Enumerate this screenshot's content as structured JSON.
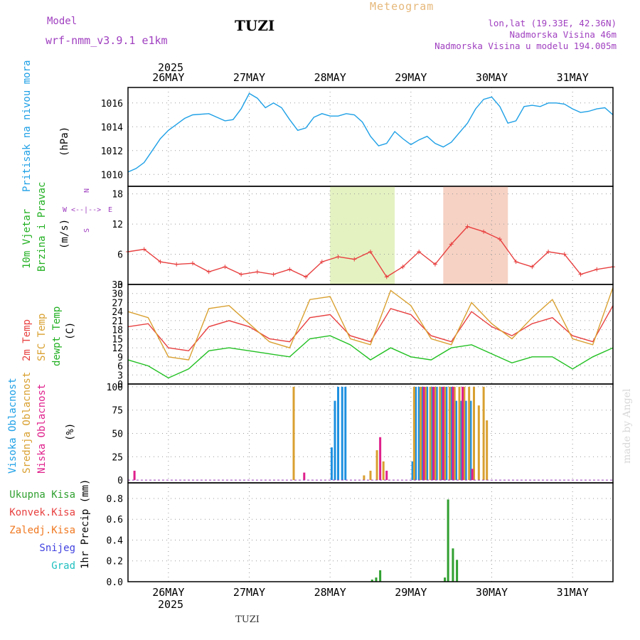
{
  "header": {
    "model_label": "Model",
    "model_name": "wrf-nmm_v3.9.1  e1km",
    "location_title": "TUZI",
    "meteogram_label": "Meteogram",
    "coords": "lon,lat (19.33E, 42.36N)",
    "elevation": "Nadmorska Visina 46m",
    "model_elevation": "Nadmorska Visina u modelu 194.005m",
    "footer_location": "TUZI",
    "credit": "made by Angel"
  },
  "time_axis": {
    "year": "2025",
    "day_labels": [
      "26MAY",
      "27MAY",
      "28MAY",
      "29MAY",
      "30MAY",
      "31MAY"
    ],
    "day_positions": [
      1,
      2,
      3,
      4,
      5,
      6
    ],
    "range_days": [
      0.5,
      6.5
    ]
  },
  "colors": {
    "pressure": "#1ea0e6",
    "t2m": "#e84040",
    "sfc": "#d9a030",
    "dewpt": "#22c022",
    "high_cloud": "#1e90e0",
    "mid_cloud": "#d9a030",
    "low_cloud": "#e0208c",
    "precip_total": "#30a030",
    "precip_conv": "#e84040",
    "precip_ice": "#f07820",
    "precip_snow": "#4040e0",
    "precip_grad": "#20c0c0",
    "wind_series": "#e84040",
    "wind_mean": "#000000",
    "label_purple": "#a040c0"
  },
  "chart_data": [
    {
      "type": "line",
      "panel": "pressure",
      "ylabel": "Pritisak na nivou mora",
      "unit": "(hPa)",
      "ylim": [
        1009.0,
        1017.3
      ],
      "yticks": [
        1010,
        1012,
        1014,
        1016
      ],
      "series": [
        {
          "x": [
            0.5,
            0.6,
            0.7,
            0.8,
            0.9,
            1.0,
            1.1,
            1.2,
            1.3,
            1.5,
            1.6,
            1.7,
            1.8,
            1.9,
            2.0,
            2.1,
            2.2,
            2.3,
            2.4,
            2.5,
            2.6,
            2.7,
            2.8,
            2.9,
            3.0,
            3.1,
            3.2,
            3.3,
            3.4,
            3.5,
            3.6,
            3.7,
            3.8,
            3.9,
            4.0,
            4.1,
            4.2,
            4.3,
            4.4,
            4.5,
            4.6,
            4.7,
            4.8,
            4.9,
            5.0,
            5.1,
            5.2,
            5.3,
            5.4,
            5.5,
            5.6,
            5.7,
            5.8,
            5.9,
            6.0,
            6.1,
            6.2,
            6.3,
            6.4,
            6.5
          ],
          "y": [
            1010.2,
            1010.5,
            1011.0,
            1012.0,
            1013.0,
            1013.7,
            1014.2,
            1014.7,
            1015.0,
            1015.1,
            1014.8,
            1014.5,
            1014.6,
            1015.5,
            1016.8,
            1016.4,
            1015.6,
            1016.0,
            1015.6,
            1014.6,
            1013.7,
            1013.9,
            1014.8,
            1015.1,
            1014.9,
            1014.9,
            1015.1,
            1015.0,
            1014.4,
            1013.2,
            1012.4,
            1012.6,
            1013.6,
            1013.0,
            1012.5,
            1012.9,
            1013.2,
            1012.6,
            1012.3,
            1012.7,
            1013.5,
            1014.3,
            1015.5,
            1016.3,
            1016.5,
            1015.7,
            1014.3,
            1014.5,
            1015.7,
            1015.8,
            1015.7,
            1016.0,
            1016.0,
            1015.9,
            1015.5,
            1015.2,
            1015.3,
            1015.5,
            1015.6,
            1015.0
          ]
        }
      ]
    },
    {
      "type": "line",
      "panel": "wind",
      "ylabel_line1": "10m Vjetar",
      "ylabel_line2": "Brzina i Pravac",
      "unit": "(m/s)",
      "compass": {
        "n": "N",
        "w": "W",
        "e": "E",
        "s": "S",
        "arrows": "<--|-->"
      },
      "ylim": [
        0,
        19.5
      ],
      "yticks": [
        0,
        6,
        12,
        18
      ],
      "series": [
        {
          "name": "speed",
          "x": [
            0.5,
            0.7,
            0.9,
            1.1,
            1.3,
            1.5,
            1.7,
            1.9,
            2.1,
            2.3,
            2.5,
            2.7,
            2.9,
            3.1,
            3.3,
            3.5,
            3.7,
            3.9,
            4.1,
            4.3,
            4.5,
            4.7,
            4.9,
            5.1,
            5.3,
            5.5,
            5.7,
            5.9,
            6.1,
            6.3,
            6.5
          ],
          "y": [
            6.5,
            7.0,
            4.5,
            4.0,
            4.2,
            2.5,
            3.5,
            2.0,
            2.5,
            2.0,
            3.0,
            1.5,
            4.5,
            5.5,
            5.0,
            6.5,
            1.5,
            3.5,
            6.5,
            4.0,
            8.0,
            11.5,
            10.5,
            9.0,
            4.5,
            3.5,
            6.5,
            6.0,
            2.0,
            3.0,
            3.5
          ]
        }
      ]
    },
    {
      "type": "line",
      "panel": "temperature",
      "labels": [
        "2m Temp",
        "SFC Temp",
        "dewpt Temp"
      ],
      "unit": "(C)",
      "ylim": [
        0,
        33
      ],
      "yticks": [
        0,
        3,
        6,
        9,
        12,
        15,
        18,
        21,
        24,
        27,
        30,
        33
      ],
      "series": [
        {
          "name": "2m Temp",
          "x": [
            0.5,
            0.75,
            1.0,
            1.25,
            1.5,
            1.75,
            2.0,
            2.25,
            2.5,
            2.75,
            3.0,
            3.25,
            3.5,
            3.75,
            4.0,
            4.25,
            4.5,
            4.75,
            5.0,
            5.25,
            5.5,
            5.75,
            6.0,
            6.25,
            6.5
          ],
          "y": [
            19,
            20,
            12,
            11,
            19,
            21,
            19,
            15,
            14,
            22,
            23,
            16,
            14,
            25,
            23,
            16,
            14,
            24,
            19,
            16,
            20,
            22,
            16,
            14,
            26
          ]
        },
        {
          "name": "SFC Temp",
          "x": [
            0.5,
            0.75,
            1.0,
            1.25,
            1.5,
            1.75,
            2.0,
            2.25,
            2.5,
            2.75,
            3.0,
            3.25,
            3.5,
            3.75,
            4.0,
            4.25,
            4.5,
            4.75,
            5.0,
            5.25,
            5.5,
            5.75,
            6.0,
            6.25,
            6.5
          ],
          "y": [
            24,
            22,
            9,
            8,
            25,
            26,
            20,
            14,
            12,
            28,
            29,
            15,
            13,
            31,
            26,
            15,
            13,
            27,
            20,
            15,
            22,
            28,
            15,
            13,
            32
          ]
        },
        {
          "name": "dewpt Temp",
          "x": [
            0.5,
            0.75,
            1.0,
            1.25,
            1.5,
            1.75,
            2.0,
            2.25,
            2.5,
            2.75,
            3.0,
            3.25,
            3.5,
            3.75,
            4.0,
            4.25,
            4.5,
            4.75,
            5.0,
            5.25,
            5.5,
            5.75,
            6.0,
            6.25,
            6.5
          ],
          "y": [
            8,
            6,
            2,
            5,
            11,
            12,
            11,
            10,
            9,
            15,
            16,
            13,
            8,
            12,
            9,
            8,
            12,
            13,
            10,
            7,
            9,
            9,
            5,
            9,
            12
          ]
        }
      ]
    },
    {
      "type": "bar",
      "panel": "clouds",
      "labels": [
        "Visoka Oblacnost",
        "Srednja Oblacnost",
        "Niska Oblacnost"
      ],
      "unit": "(%)",
      "ylim": [
        -3,
        103
      ],
      "yticks": [
        0,
        25,
        50,
        75,
        100
      ],
      "series": [
        {
          "name": "Visoka Oblacnost",
          "x": [
            3.02,
            3.06,
            3.1,
            3.15,
            3.19,
            4.02,
            4.06,
            4.1,
            4.14,
            4.2,
            4.26,
            4.32,
            4.38,
            4.44,
            4.5,
            4.56,
            4.62,
            4.68,
            4.74
          ],
          "y": [
            35,
            85,
            100,
            100,
            100,
            20,
            100,
            100,
            100,
            100,
            100,
            100,
            100,
            100,
            100,
            85,
            85,
            85,
            85
          ]
        },
        {
          "name": "Srednja Oblacnost",
          "x": [
            2.55,
            3.42,
            3.5,
            3.58,
            3.66,
            4.04,
            4.12,
            4.18,
            4.24,
            4.3,
            4.36,
            4.42,
            4.48,
            4.54,
            4.6,
            4.66,
            4.72,
            4.78,
            4.84,
            4.9,
            4.94
          ],
          "y": [
            100,
            5,
            10,
            32,
            20,
            100,
            100,
            100,
            100,
            100,
            100,
            100,
            100,
            100,
            100,
            100,
            100,
            100,
            80,
            100,
            64
          ]
        },
        {
          "name": "Niska Oblacnost",
          "x": [
            0.58,
            2.68,
            3.62,
            3.7,
            4.16,
            4.28,
            4.4,
            4.52,
            4.64,
            4.76
          ],
          "y": [
            10,
            8,
            46,
            10,
            100,
            100,
            100,
            100,
            100,
            12
          ]
        }
      ]
    },
    {
      "type": "bar",
      "panel": "precipitation",
      "labels": [
        "Ukupna Kisa",
        "Konvek.Kisa",
        "Zaledj.Kisa",
        "Snijeg",
        "Grad"
      ],
      "unit": "1hr Precip (mm)",
      "ylim": [
        0,
        0.95
      ],
      "yticks": [
        0.0,
        0.2,
        0.4,
        0.6,
        0.8
      ],
      "series": [
        {
          "name": "Ukupna Kisa",
          "x": [
            3.52,
            3.57,
            3.62,
            4.42,
            4.46,
            4.52,
            4.57
          ],
          "y": [
            0.02,
            0.04,
            0.11,
            0.04,
            0.79,
            0.32,
            0.21
          ]
        }
      ]
    }
  ]
}
